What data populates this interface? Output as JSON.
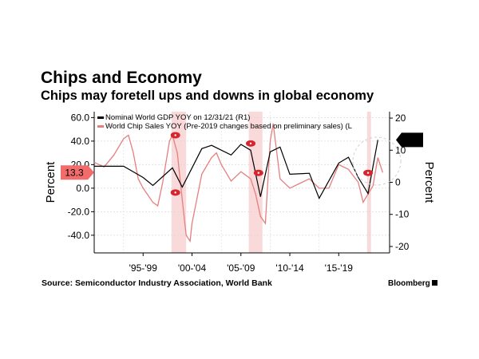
{
  "header": {
    "title": "Chips and Economy",
    "subtitle": "Chips may foretell ups and downs in global economy"
  },
  "footer": {
    "source": "Source: Semiconductor Industry Association, World Bank",
    "brand": "Bloomberg"
  },
  "colors": {
    "gdp": "#000000",
    "chips": "#e57f7f",
    "highlight": "#f6c9c9",
    "marker": "#d6252c",
    "label_red": "#f26c6c"
  },
  "chart_data": {
    "type": "line",
    "title": "Chips may foretell ups and downs in global economy",
    "x_tick_labels": [
      "'95-'99",
      "'00-'04",
      "'05-'09",
      "'10-'14",
      "'15-'19"
    ],
    "left_axis": {
      "label": "Percent",
      "range": [
        -55,
        65
      ],
      "ticks": [
        "60.0",
        "40.0",
        "20.0",
        "0.0",
        "-20.0",
        "-40.0"
      ]
    },
    "right_axis": {
      "label": "Percent",
      "range": [
        -22,
        22
      ],
      "ticks": [
        "20",
        "10",
        "0",
        "-10",
        "-20"
      ]
    },
    "grid": true,
    "legend_position": "top",
    "series": [
      {
        "name": "Nominal World GDP YOY on 12/31/21 (R1)",
        "axis": "right",
        "last_value_label": "13.2",
        "x": [
          1992,
          1995,
          1997,
          1998,
          2000,
          2001,
          2003,
          2004,
          2006,
          2007,
          2008,
          2009,
          2010,
          2011,
          2012,
          2014,
          2015,
          2017,
          2018,
          2019,
          2020,
          2021
        ],
        "y": [
          5,
          5,
          1.5,
          -1,
          4.5,
          -1.5,
          10.5,
          11.5,
          8.5,
          11.8,
          10,
          -4.5,
          9.5,
          11,
          2.5,
          2.8,
          -5,
          6,
          7.8,
          1.5,
          -3.5,
          13.2
        ]
      },
      {
        "name": "World Chip Sales YOY (Pre-2019 changes based on preliminary sales) (L",
        "axis": "left",
        "last_value_label": "13.3",
        "x": [
          1992,
          1993,
          1994,
          1995,
          1995.5,
          1996,
          1996.5,
          1997,
          1998,
          1998.5,
          1999,
          1999.7,
          2000,
          2000.5,
          2001,
          2001.4,
          2001.8,
          2002,
          2003,
          2004,
          2004.5,
          2005,
          2006,
          2007,
          2008,
          2008.5,
          2009,
          2009.5,
          2010,
          2010.3,
          2011,
          2012,
          2013,
          2014,
          2015,
          2016,
          2017,
          2018,
          2019,
          2019.5,
          2020,
          2020.5,
          2021,
          2021.5
        ],
        "y": [
          22,
          18,
          28,
          42,
          45,
          30,
          8,
          0,
          -12,
          -15,
          5,
          40,
          45,
          30,
          -10,
          -40,
          -45,
          -30,
          12,
          26,
          30,
          20,
          6,
          14,
          8,
          -5,
          -24,
          -30,
          40,
          55,
          8,
          0,
          4,
          8,
          0,
          0,
          20,
          16,
          5,
          -12,
          -5,
          2,
          26,
          13.3
        ]
      }
    ],
    "annotations": [
      "13.3",
      "13.2"
    ]
  }
}
